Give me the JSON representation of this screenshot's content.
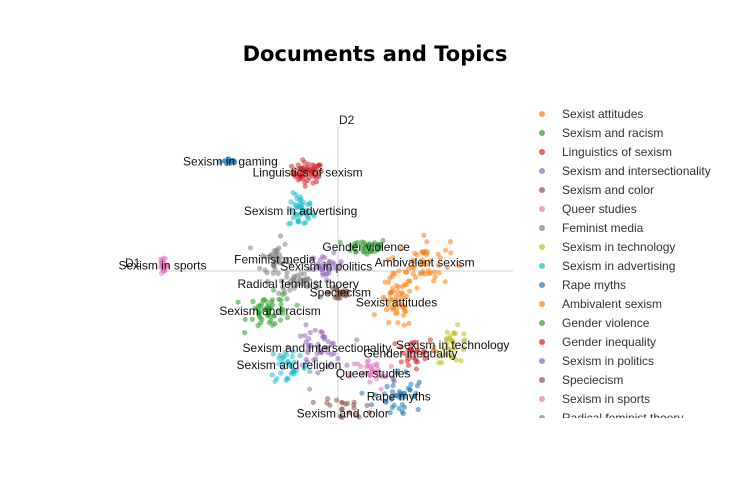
{
  "chart_data": {
    "type": "scatter",
    "title": "Documents and Topics",
    "axis_labels": {
      "x": "D1",
      "y": "D2"
    },
    "legend_placement": "right",
    "series": [
      {
        "name": "Sexist attitudes",
        "color": "#ff7f0e"
      },
      {
        "name": "Sexism and racism",
        "color": "#2ca02c"
      },
      {
        "name": "Linguistics of sexism",
        "color": "#d62728"
      },
      {
        "name": "Sexism and intersectionality",
        "color": "#9467bd"
      },
      {
        "name": "Sexism and color",
        "color": "#8c564b"
      },
      {
        "name": "Queer studies",
        "color": "#e377c2"
      },
      {
        "name": "Feminist media",
        "color": "#7f7f7f"
      },
      {
        "name": "Sexism in technology",
        "color": "#bcbd22"
      },
      {
        "name": "Sexism in advertising",
        "color": "#17becf"
      },
      {
        "name": "Rape myths",
        "color": "#1f77b4"
      },
      {
        "name": "Ambivalent sexism",
        "color": "#ff7f0e"
      },
      {
        "name": "Gender violence",
        "color": "#2ca02c"
      },
      {
        "name": "Gender inequality",
        "color": "#d62728"
      },
      {
        "name": "Sexism in politics",
        "color": "#9467bd"
      },
      {
        "name": "Speciecism",
        "color": "#8c564b"
      },
      {
        "name": "Sexism in sports",
        "color": "#e377c2"
      },
      {
        "name": "Radical feminist thoery",
        "color": "#7f7f7f"
      }
    ],
    "clusters": [
      {
        "label": "Sexism in gaming",
        "color": "#1f77b4",
        "n": 14,
        "x": -4.6,
        "y": 3.85,
        "sx": 0.35,
        "sy": 0.1
      },
      {
        "label": "Linguistics of sexism",
        "color": "#d62728",
        "n": 60,
        "x": -1.3,
        "y": 3.45,
        "sx": 0.55,
        "sy": 0.3
      },
      {
        "label": "Sexism in advertising",
        "color": "#17becf",
        "n": 45,
        "x": -1.6,
        "y": 2.1,
        "sx": 0.45,
        "sy": 0.5
      },
      {
        "label": "Gender violence",
        "color": "#2ca02c",
        "n": 40,
        "x": 1.2,
        "y": 0.85,
        "sx": 0.8,
        "sy": 0.25
      },
      {
        "label": "Feminist media",
        "color": "#7f7f7f",
        "n": 40,
        "x": -2.7,
        "y": 0.4,
        "sx": 0.5,
        "sy": 0.6
      },
      {
        "label": "Ambivalent sexism",
        "color": "#ff7f0e",
        "n": 50,
        "x": 3.7,
        "y": 0.3,
        "sx": 0.9,
        "sy": 0.7
      },
      {
        "label": "Sexism in politics",
        "color": "#9467bd",
        "n": 35,
        "x": -0.5,
        "y": 0.15,
        "sx": 0.6,
        "sy": 0.35
      },
      {
        "label": "Sexism in sports",
        "color": "#e377c2",
        "n": 28,
        "x": -7.5,
        "y": 0.2,
        "sx": 0.2,
        "sy": 0.18
      },
      {
        "label": "Radical feminist thoery",
        "color": "#7f7f7f",
        "n": 30,
        "x": -1.7,
        "y": -0.45,
        "sx": 0.7,
        "sy": 0.3
      },
      {
        "label": "Speciecism",
        "color": "#8c564b",
        "n": 25,
        "x": 0.1,
        "y": -0.75,
        "sx": 0.4,
        "sy": 0.3
      },
      {
        "label": "Sexist attitudes",
        "color": "#ff7f0e",
        "n": 55,
        "x": 2.5,
        "y": -1.1,
        "sx": 0.6,
        "sy": 0.8
      },
      {
        "label": "Sexism and racism",
        "color": "#2ca02c",
        "n": 55,
        "x": -2.9,
        "y": -1.4,
        "sx": 0.8,
        "sy": 0.5
      },
      {
        "label": "Sexism in technology",
        "color": "#bcbd22",
        "n": 35,
        "x": 4.9,
        "y": -2.6,
        "sx": 0.6,
        "sy": 0.5
      },
      {
        "label": "Sexism and intersectionality",
        "color": "#9467bd",
        "n": 45,
        "x": -0.9,
        "y": -2.7,
        "sx": 0.9,
        "sy": 0.6
      },
      {
        "label": "Gender inequality",
        "color": "#d62728",
        "n": 30,
        "x": 3.1,
        "y": -2.9,
        "sx": 0.7,
        "sy": 0.4
      },
      {
        "label": "Queer studies",
        "color": "#e377c2",
        "n": 35,
        "x": 1.5,
        "y": -3.6,
        "sx": 0.8,
        "sy": 0.5
      },
      {
        "label": "Sexism and religion",
        "color": "#17becf",
        "n": 35,
        "x": -2.1,
        "y": -3.3,
        "sx": 0.7,
        "sy": 0.6
      },
      {
        "label": "Rape myths",
        "color": "#1f77b4",
        "n": 45,
        "x": 2.6,
        "y": -4.4,
        "sx": 0.9,
        "sy": 0.8
      },
      {
        "label": "Sexism and color",
        "color": "#8c564b",
        "n": 40,
        "x": 0.2,
        "y": -5.0,
        "sx": 0.8,
        "sy": 0.6
      }
    ],
    "xlim": [
      -8,
      8
    ],
    "ylim": [
      -6,
      6
    ]
  }
}
